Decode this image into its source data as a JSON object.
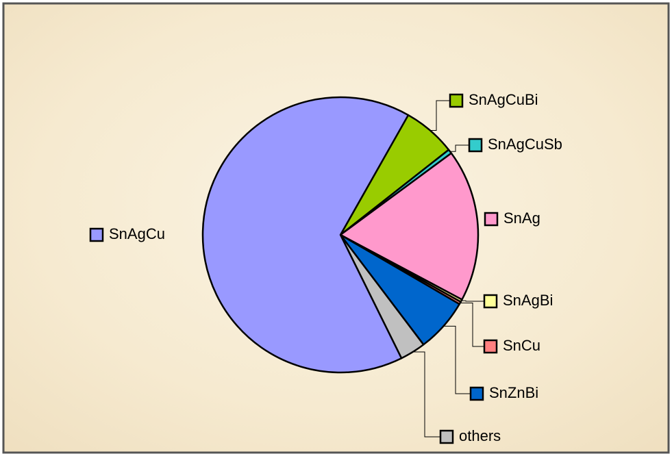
{
  "chart_data": {
    "type": "pie",
    "categories": [
      "SnAgCuBi",
      "SnAgCuSb",
      "SnAg",
      "SnAgBi",
      "SnCu",
      "SnZnBi",
      "others",
      "SnAgCu"
    ],
    "values": [
      6.2,
      0.5,
      17.9,
      0.3,
      0.3,
      6.3,
      3.0,
      65.5
    ],
    "colors": [
      "#99cc00",
      "#33cccc",
      "#ff99cc",
      "#ffff99",
      "#ff8080",
      "#0066cc",
      "#c0c0c0",
      "#9999ff"
    ],
    "legend": "labels"
  }
}
